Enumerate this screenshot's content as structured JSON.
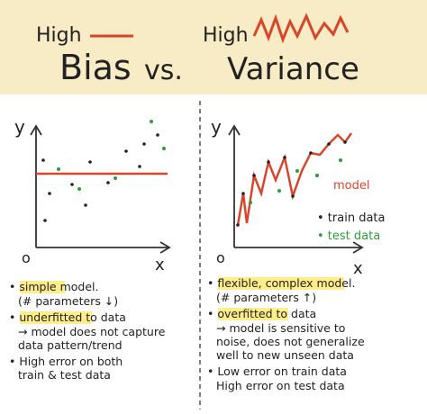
{
  "header": {
    "left_small": "High",
    "left_big": "Bias",
    "vs": "vs.",
    "right_small": "High",
    "right_big": "Variance"
  },
  "left_chart": {
    "y_label": "y",
    "x_label": "x",
    "origin": "o"
  },
  "right_chart": {
    "y_label": "y",
    "x_label": "x",
    "origin": "o",
    "model_label": "model",
    "train_label": "• train data",
    "test_label": "• test data"
  },
  "left_notes": [
    "• simple model.",
    "(# parameters ↓)",
    "• underfitted to data",
    "→ model does not capture",
    "data pattern/trend",
    "• High error on both",
    "train & test data"
  ],
  "right_notes": [
    "• flexible, complex model.",
    "(# parameters ↑)",
    "• overfitted to data",
    "→ model is sensitive to",
    "noise, does not generalize",
    "well to new unseen data",
    "• Low error on train data",
    "High error on test data"
  ]
}
